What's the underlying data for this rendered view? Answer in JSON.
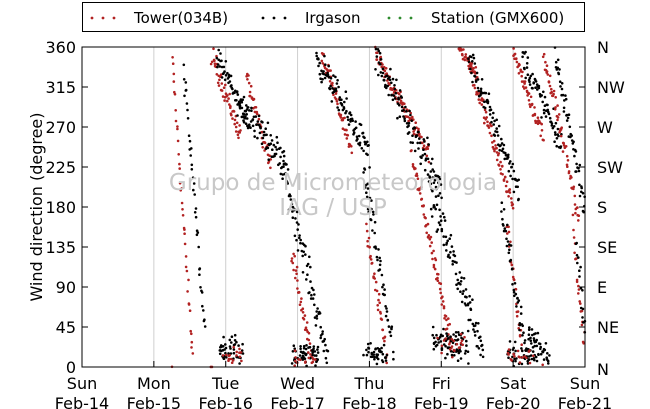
{
  "chart_data": {
    "type": "scatter",
    "ylabel": "Wind direction (degree)",
    "ylim": [
      0,
      360
    ],
    "yticks": [
      0,
      45,
      90,
      135,
      180,
      225,
      270,
      315,
      360
    ],
    "compass_labels": [
      "N",
      "NE",
      "E",
      "SE",
      "S",
      "SW",
      "W",
      "NW",
      "N"
    ],
    "xlim": [
      "2015-02-14",
      "2015-02-21"
    ],
    "xtick_days": [
      "Sun",
      "Mon",
      "Tue",
      "Wed",
      "Thu",
      "Fri",
      "Sat",
      "Sun"
    ],
    "xtick_dates": [
      "Feb-14",
      "Feb-15",
      "Feb-16",
      "Feb-17",
      "Feb-18",
      "Feb-19",
      "Feb-20",
      "Feb-21"
    ],
    "grid": "vertical-lines",
    "legend_position": "top",
    "watermark": [
      "Grupo de Micrometeorologia",
      "IAG / USP"
    ],
    "series": [
      {
        "name": "Tower(034B)",
        "color": "#b22222",
        "marker": "dot"
      },
      {
        "name": "Irgason",
        "color": "#000000",
        "marker": "dot"
      },
      {
        "name": "Station (GMX600)",
        "color": "#2e8b2e",
        "marker": "dot"
      }
    ],
    "segments": [
      {
        "series": 0,
        "start": "2015-02-15 06:00",
        "end": "2015-02-15 13:00",
        "y_start": 355,
        "y_end": 10,
        "spread": 18
      },
      {
        "series": 1,
        "start": "2015-02-15 10:00",
        "end": "2015-02-15 17:00",
        "y_start": 340,
        "y_end": 40,
        "spread": 25
      },
      {
        "series": 0,
        "start": "2015-02-15 19:00",
        "end": "2015-02-16 05:00",
        "y_start": 355,
        "y_end": 260,
        "spread": 18
      },
      {
        "series": 1,
        "start": "2015-02-15 21:00",
        "end": "2015-02-16 08:00",
        "y_start": 350,
        "y_end": 270,
        "spread": 20
      },
      {
        "series": 0,
        "start": "2015-02-16 07:00",
        "end": "2015-02-16 15:00",
        "y_start": 330,
        "y_end": 225,
        "spread": 15
      },
      {
        "series": 1,
        "start": "2015-02-16 04:00",
        "end": "2015-02-16 20:00",
        "y_start": 300,
        "y_end": 230,
        "spread": 25
      },
      {
        "series": 0,
        "start": "2015-02-16 22:00",
        "end": "2015-02-17 05:00",
        "y_start": 130,
        "y_end": 5,
        "spread": 20
      },
      {
        "series": 1,
        "start": "2015-02-16 19:00",
        "end": "2015-02-17 10:00",
        "y_start": 230,
        "y_end": 10,
        "spread": 30
      },
      {
        "series": 0,
        "start": "2015-02-17 08:00",
        "end": "2015-02-17 18:00",
        "y_start": 355,
        "y_end": 245,
        "spread": 15
      },
      {
        "series": 1,
        "start": "2015-02-17 06:00",
        "end": "2015-02-18 00:00",
        "y_start": 350,
        "y_end": 240,
        "spread": 25
      },
      {
        "series": 0,
        "start": "2015-02-17 23:00",
        "end": "2015-02-18 06:00",
        "y_start": 150,
        "y_end": 10,
        "spread": 20
      },
      {
        "series": 1,
        "start": "2015-02-17 22:00",
        "end": "2015-02-18 08:00",
        "y_start": 220,
        "y_end": 20,
        "spread": 30
      },
      {
        "series": 0,
        "start": "2015-02-18 02:00",
        "end": "2015-02-18 20:00",
        "y_start": 350,
        "y_end": 240,
        "spread": 15
      },
      {
        "series": 1,
        "start": "2015-02-18 02:00",
        "end": "2015-02-19 00:00",
        "y_start": 350,
        "y_end": 200,
        "spread": 30
      },
      {
        "series": 0,
        "start": "2015-02-18 14:00",
        "end": "2015-02-19 04:00",
        "y_start": 240,
        "y_end": 20,
        "spread": 18
      },
      {
        "series": 1,
        "start": "2015-02-18 20:00",
        "end": "2015-02-19 14:00",
        "y_start": 200,
        "y_end": 20,
        "spread": 30
      },
      {
        "series": 0,
        "start": "2015-02-19 06:00",
        "end": "2015-02-19 12:00",
        "y_start": 360,
        "y_end": 330,
        "spread": 12
      },
      {
        "series": 0,
        "start": "2015-02-19 09:00",
        "end": "2015-02-20 00:00",
        "y_start": 345,
        "y_end": 180,
        "spread": 18
      },
      {
        "series": 1,
        "start": "2015-02-19 09:00",
        "end": "2015-02-20 02:00",
        "y_start": 350,
        "y_end": 200,
        "spread": 25
      },
      {
        "series": 0,
        "start": "2015-02-19 22:00",
        "end": "2015-02-20 03:00",
        "y_start": 160,
        "y_end": 20,
        "spread": 20
      },
      {
        "series": 1,
        "start": "2015-02-19 20:00",
        "end": "2015-02-20 05:00",
        "y_start": 180,
        "y_end": 5,
        "spread": 25
      },
      {
        "series": 0,
        "start": "2015-02-20 00:00",
        "end": "2015-02-20 10:00",
        "y_start": 355,
        "y_end": 260,
        "spread": 15
      },
      {
        "series": 1,
        "start": "2015-02-20 03:00",
        "end": "2015-02-20 16:00",
        "y_start": 350,
        "y_end": 250,
        "spread": 25
      },
      {
        "series": 1,
        "start": "2015-02-20 05:00",
        "end": "2015-02-20 12:00",
        "y_start": 40,
        "y_end": 10,
        "spread": 15
      },
      {
        "series": 0,
        "start": "2015-02-20 10:00",
        "end": "2015-02-20 22:00",
        "y_start": 355,
        "y_end": 170,
        "spread": 20
      },
      {
        "series": 1,
        "start": "2015-02-20 14:00",
        "end": "2015-02-21 00:00",
        "y_start": 350,
        "y_end": 180,
        "spread": 25
      },
      {
        "series": 0,
        "start": "2015-02-20 20:00",
        "end": "2015-02-21 00:00",
        "y_start": 160,
        "y_end": 20,
        "spread": 20
      },
      {
        "series": 1,
        "start": "2015-02-20 21:00",
        "end": "2015-02-21 00:00",
        "y_start": 150,
        "y_end": 40,
        "spread": 25
      }
    ],
    "clusters": [
      {
        "series": 1,
        "start": "2015-02-15 22:00",
        "end": "2015-02-16 06:00",
        "y_center": 20,
        "spread": 22,
        "count": 45
      },
      {
        "series": 0,
        "start": "2015-02-15 22:00",
        "end": "2015-02-16 06:00",
        "y_center": 15,
        "spread": 15,
        "count": 18
      },
      {
        "series": 1,
        "start": "2015-02-16 22:00",
        "end": "2015-02-17 07:00",
        "y_center": 15,
        "spread": 18,
        "count": 55
      },
      {
        "series": 0,
        "start": "2015-02-16 22:00",
        "end": "2015-02-17 06:00",
        "y_center": 10,
        "spread": 12,
        "count": 15
      },
      {
        "series": 1,
        "start": "2015-02-17 22:00",
        "end": "2015-02-18 06:00",
        "y_center": 15,
        "spread": 18,
        "count": 40
      },
      {
        "series": 1,
        "start": "2015-02-18 21:00",
        "end": "2015-02-19 09:00",
        "y_center": 25,
        "spread": 25,
        "count": 70
      },
      {
        "series": 0,
        "start": "2015-02-18 22:00",
        "end": "2015-02-19 08:00",
        "y_center": 25,
        "spread": 20,
        "count": 20
      },
      {
        "series": 1,
        "start": "2015-02-19 22:00",
        "end": "2015-02-20 08:00",
        "y_center": 15,
        "spread": 18,
        "count": 45
      },
      {
        "series": 0,
        "start": "2015-02-19 22:00",
        "end": "2015-02-20 08:00",
        "y_center": 12,
        "spread": 12,
        "count": 18
      }
    ]
  }
}
